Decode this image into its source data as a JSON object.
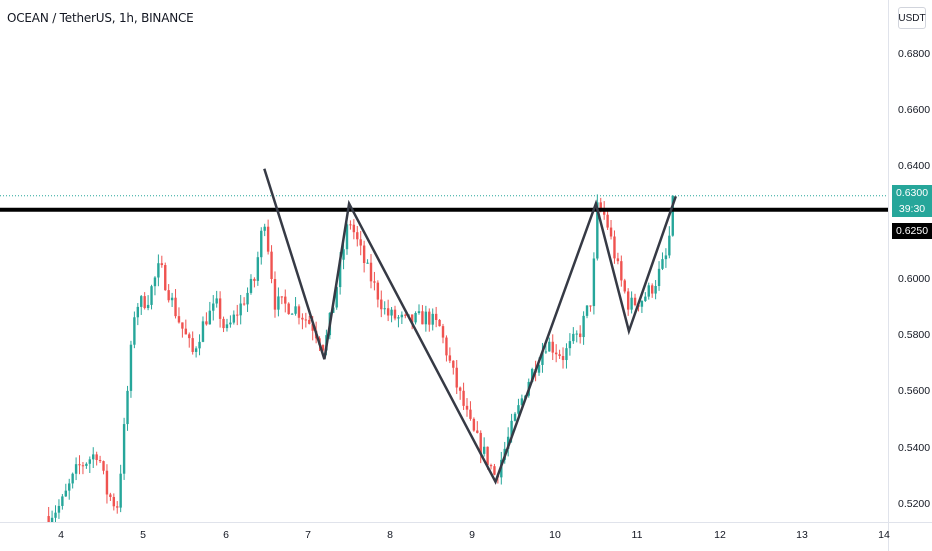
{
  "header": {
    "symbol_title": "OCEAN / TetherUS, 1h, BINANCE",
    "currency": "USDT"
  },
  "price_axis": {
    "ticks": [
      "0.6800",
      "0.6600",
      "0.6400",
      "0.6000",
      "0.5800",
      "0.5600",
      "0.5400",
      "0.5200"
    ],
    "last_price": "0.6300",
    "countdown": "39:30",
    "level_label": "0.6250"
  },
  "time_axis": {
    "ticks": [
      "4",
      "5",
      "6",
      "7",
      "8",
      "9",
      "10",
      "11",
      "12",
      "13",
      "14"
    ]
  },
  "colors": {
    "up": "#26a69a",
    "down": "#ef5350",
    "pattern_line": "#363a45",
    "level_line": "#000000",
    "last_price_line": "#26a69a"
  },
  "chart_data": {
    "type": "candlestick",
    "title": "OCEAN / TetherUS, 1h, BINANCE",
    "xlabel": "",
    "ylabel": "",
    "xlim": [
      3.75,
      14.0
    ],
    "ylim": [
      0.516,
      0.6965
    ],
    "grid": false,
    "last_price": 0.63,
    "horizontal_level": 0.625,
    "pattern_line": {
      "x": [
        6.47,
        7.2,
        7.5,
        9.28,
        10.5,
        10.9,
        11.47
      ],
      "y": [
        0.6396,
        0.5718,
        0.6272,
        0.5282,
        0.6272,
        0.5818,
        0.6298
      ]
    },
    "price_path": {
      "x": [
        3.85,
        4.0,
        4.2,
        4.45,
        4.55,
        4.68,
        4.72,
        4.9,
        5.05,
        5.2,
        5.4,
        5.6,
        5.75,
        5.9,
        6.0,
        6.15,
        6.35,
        6.47,
        6.6,
        6.85,
        7.05,
        7.2,
        7.3,
        7.5,
        7.7,
        7.95,
        8.2,
        8.45,
        8.6,
        8.8,
        9.0,
        9.15,
        9.28,
        9.45,
        9.7,
        9.9,
        10.1,
        10.3,
        10.45,
        10.52,
        10.62,
        10.8,
        10.9,
        11.05,
        11.2,
        11.35,
        11.47
      ],
      "y": [
        0.516,
        0.52,
        0.533,
        0.539,
        0.525,
        0.519,
        0.531,
        0.591,
        0.593,
        0.605,
        0.588,
        0.574,
        0.586,
        0.591,
        0.581,
        0.589,
        0.6,
        0.623,
        0.592,
        0.59,
        0.584,
        0.576,
        0.59,
        0.622,
        0.605,
        0.588,
        0.585,
        0.587,
        0.583,
        0.563,
        0.546,
        0.538,
        0.53,
        0.545,
        0.566,
        0.578,
        0.573,
        0.581,
        0.594,
        0.627,
        0.622,
        0.6,
        0.591,
        0.593,
        0.598,
        0.608,
        0.629
      ]
    }
  }
}
